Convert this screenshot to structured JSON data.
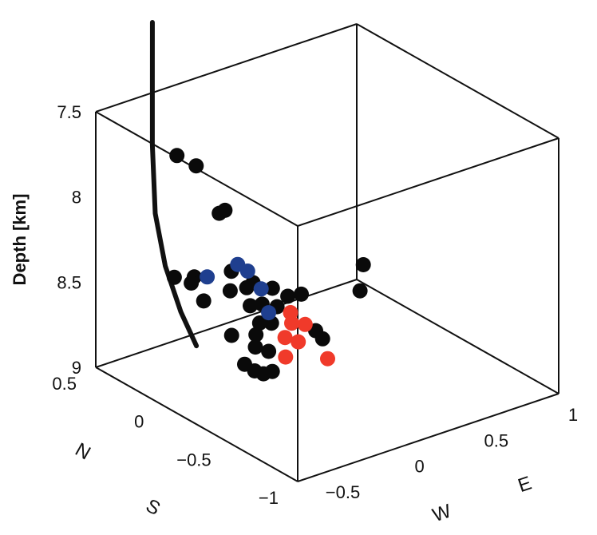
{
  "chart_data": {
    "type": "scatter",
    "title": "",
    "projection": "3d",
    "zlabel": "Depth [km]",
    "z_ticks": [
      "7.5",
      "8",
      "8.5",
      "9"
    ],
    "ns_ticks": [
      "0.5",
      "0",
      "−0.5",
      "−1"
    ],
    "ew_ticks": [
      "−0.5",
      "0",
      "0.5",
      "1"
    ],
    "ns_axis_labels": [
      "N",
      "S"
    ],
    "ew_axis_labels": [
      "W",
      "E"
    ],
    "xlim_ew": [
      -0.7,
      1.0
    ],
    "ylim_ns": [
      -1.0,
      0.5
    ],
    "zlim_depth": [
      7.5,
      9.0
    ],
    "colors": {
      "black": "#0a0a0a",
      "blue": "#1f3f8f",
      "red": "#f03a2a",
      "well": "#111111"
    },
    "well_trajectory": [
      {
        "ew": -0.34,
        "ns": 0.49,
        "depth": 7.5
      },
      {
        "ew": -0.34,
        "ns": 0.49,
        "depth": 7.8
      },
      {
        "ew": -0.33,
        "ns": 0.48,
        "depth": 8.2
      },
      {
        "ew": -0.3,
        "ns": 0.44,
        "depth": 8.5
      },
      {
        "ew": -0.26,
        "ns": 0.37,
        "depth": 8.75
      },
      {
        "ew": -0.22,
        "ns": 0.3,
        "depth": 8.93
      }
    ],
    "series": [
      {
        "color": "black",
        "points": [
          {
            "ew": -0.18,
            "ns": 0.49,
            "depth": 7.91
          },
          {
            "ew": -0.09,
            "ns": 0.45,
            "depth": 7.98
          },
          {
            "ew": -0.06,
            "ns": 0.27,
            "depth": 8.17
          },
          {
            "ew": -0.08,
            "ns": 0.29,
            "depth": 8.19
          },
          {
            "ew": -0.26,
            "ns": 0.27,
            "depth": 8.5
          },
          {
            "ew": -0.32,
            "ns": 0.35,
            "depth": 8.52
          },
          {
            "ew": -0.28,
            "ns": 0.27,
            "depth": 8.53
          },
          {
            "ew": -0.26,
            "ns": 0.2,
            "depth": 8.61
          },
          {
            "ew": -0.08,
            "ns": 0.2,
            "depth": 8.49
          },
          {
            "ew": -0.14,
            "ns": 0.14,
            "depth": 8.56
          },
          {
            "ew": -0.05,
            "ns": 0.12,
            "depth": 8.56
          },
          {
            "ew": 0.0,
            "ns": 0.13,
            "depth": 8.55
          },
          {
            "ew": -0.08,
            "ns": 0.06,
            "depth": 8.63
          },
          {
            "ew": -0.02,
            "ns": 0.04,
            "depth": 8.63
          },
          {
            "ew": 0.1,
            "ns": 0.1,
            "depth": 8.6
          },
          {
            "ew": 0.06,
            "ns": 0.02,
            "depth": 8.66
          },
          {
            "ew": 0.13,
            "ns": 0.02,
            "depth": 8.62
          },
          {
            "ew": 0.2,
            "ns": 0.0,
            "depth": 8.62
          },
          {
            "ew": 0.42,
            "ns": -0.21,
            "depth": 8.42
          },
          {
            "ew": 0.39,
            "ns": -0.22,
            "depth": 8.56
          },
          {
            "ew": -0.08,
            "ns": -0.01,
            "depth": 8.7
          },
          {
            "ew": -0.02,
            "ns": -0.03,
            "depth": 8.71
          },
          {
            "ew": -0.13,
            "ns": -0.04,
            "depth": 8.74
          },
          {
            "ew": -0.21,
            "ns": 0.05,
            "depth": 8.76
          },
          {
            "ew": -0.16,
            "ns": -0.07,
            "depth": 8.79
          },
          {
            "ew": -0.1,
            "ns": -0.1,
            "depth": 8.82
          },
          {
            "ew": 0.18,
            "ns": -0.13,
            "depth": 8.77
          },
          {
            "ew": 0.26,
            "ns": -0.09,
            "depth": 8.86
          },
          {
            "ew": -0.23,
            "ns": -0.07,
            "depth": 8.87
          },
          {
            "ew": -0.2,
            "ns": -0.11,
            "depth": 8.9
          },
          {
            "ew": -0.12,
            "ns": -0.15,
            "depth": 8.91
          },
          {
            "ew": -0.16,
            "ns": -0.13,
            "depth": 8.92
          }
        ]
      },
      {
        "color": "blue",
        "points": [
          {
            "ew": -0.22,
            "ns": 0.22,
            "depth": 8.49
          },
          {
            "ew": -0.03,
            "ns": 0.21,
            "depth": 8.47
          },
          {
            "ew": 0.0,
            "ns": 0.17,
            "depth": 8.5
          },
          {
            "ew": 0.0,
            "ns": 0.07,
            "depth": 8.56
          },
          {
            "ew": -0.03,
            "ns": -0.02,
            "depth": 8.65
          }
        ]
      },
      {
        "color": "red",
        "points": [
          {
            "ew": 0.06,
            "ns": -0.08,
            "depth": 8.65
          },
          {
            "ew": 0.05,
            "ns": -0.1,
            "depth": 8.7
          },
          {
            "ew": 0.12,
            "ns": -0.12,
            "depth": 8.72
          },
          {
            "ew": -0.02,
            "ns": -0.13,
            "depth": 8.75
          },
          {
            "ew": 0.04,
            "ns": -0.16,
            "depth": 8.78
          },
          {
            "ew": -0.06,
            "ns": -0.18,
            "depth": 8.83
          },
          {
            "ew": 0.1,
            "ns": -0.31,
            "depth": 8.83
          }
        ]
      }
    ]
  }
}
